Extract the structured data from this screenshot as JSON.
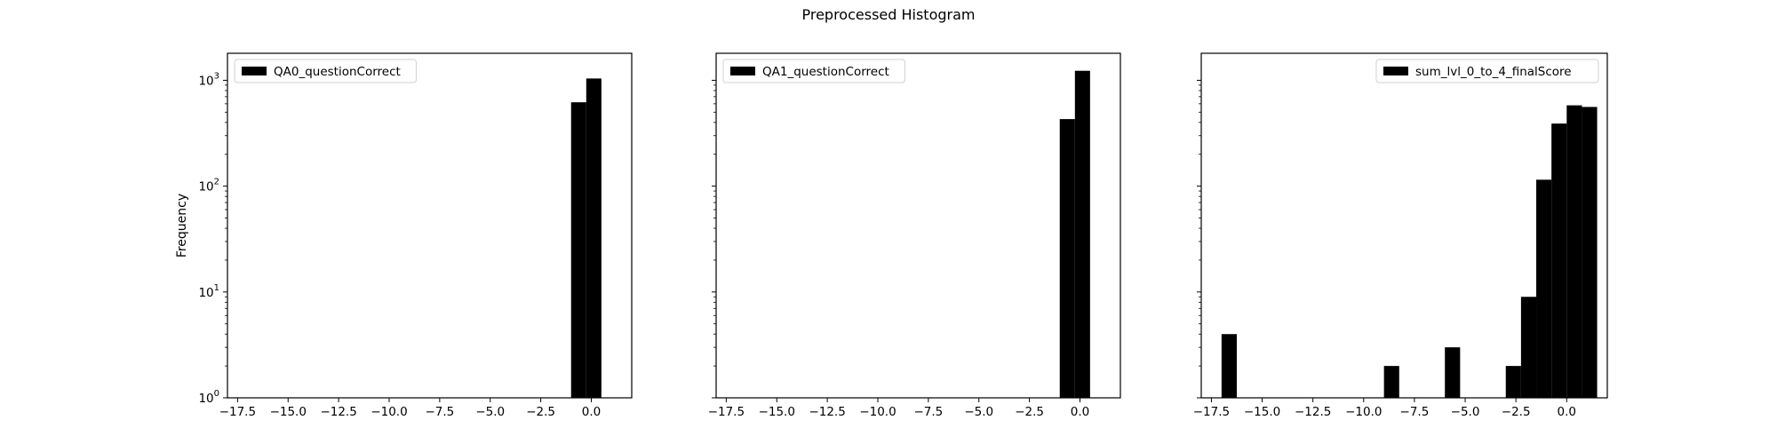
{
  "chart_data": {
    "type": "bar",
    "title": "Preprocessed Histogram",
    "ylabel": "Frequency",
    "yscale": "log",
    "ylim": [
      1,
      1800
    ],
    "sharey": true,
    "xlim": [
      -18.0,
      2.0
    ],
    "xticks": [
      -17.5,
      -15.0,
      -12.5,
      -10.0,
      -7.5,
      -5.0,
      -2.5,
      0.0
    ],
    "xtick_labels": [
      "−17.5",
      "−15.0",
      "−12.5",
      "−10.0",
      "−7.5",
      "−5.0",
      "−2.5",
      "0.0"
    ],
    "yticks": [
      1,
      10,
      100,
      1000
    ],
    "bar_color": "#000000",
    "legend_placement": [
      "upper left",
      "upper left",
      "upper right"
    ],
    "subplots": [
      {
        "legend": "QA0_questionCorrect",
        "bins": [
          [
            -1.0,
            -0.25,
            620
          ],
          [
            -0.25,
            0.5,
            1040
          ]
        ]
      },
      {
        "legend": "QA1_questionCorrect",
        "bins": [
          [
            -1.0,
            -0.25,
            430
          ],
          [
            -0.25,
            0.5,
            1230
          ]
        ]
      },
      {
        "legend": "sum_lvl_0_to_4_finalScore",
        "bins": [
          [
            -17.0,
            -16.25,
            4
          ],
          [
            -9.0,
            -8.25,
            2
          ],
          [
            -6.0,
            -5.25,
            3
          ],
          [
            -3.0,
            -2.25,
            2
          ],
          [
            -2.25,
            -1.5,
            9
          ],
          [
            -1.5,
            -0.75,
            115
          ],
          [
            -0.75,
            0.0,
            390
          ],
          [
            0.0,
            0.75,
            580
          ],
          [
            0.75,
            1.5,
            560
          ]
        ]
      }
    ]
  }
}
